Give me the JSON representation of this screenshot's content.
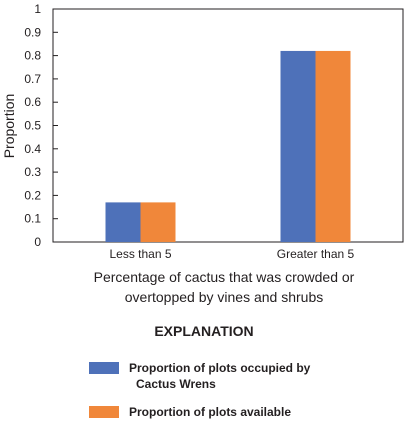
{
  "chart_data": {
    "type": "bar",
    "categories": [
      "Less than 5",
      "Greater than 5"
    ],
    "series": [
      {
        "name": "Proportion of plots occupied by Cactus Wrens",
        "values": [
          0.17,
          0.82
        ],
        "color": "#4e71b9"
      },
      {
        "name": "Proportion of plots available",
        "values": [
          0.17,
          0.82
        ],
        "color": "#f0873a"
      }
    ],
    "ylabel": "Proportion",
    "xlabel_lines": [
      "Percentage of cactus that was crowded or",
      "overtopped by vines and shrubs"
    ],
    "ylim": [
      0,
      1
    ],
    "yticks": [
      "0",
      "0.1",
      "0.2",
      "0.3",
      "0.4",
      "0.5",
      "0.6",
      "0.7",
      "0.8",
      "0.9",
      "1"
    ],
    "grid": false,
    "legend_placement": "bottom"
  },
  "legend": {
    "heading": "EXPLANATION",
    "items": [
      {
        "lines": [
          "Proportion of plots occupied by",
          "Cactus Wrens"
        ],
        "color": "#4e71b9"
      },
      {
        "lines": [
          "Proportion of plots available"
        ],
        "color": "#f0873a"
      }
    ]
  }
}
